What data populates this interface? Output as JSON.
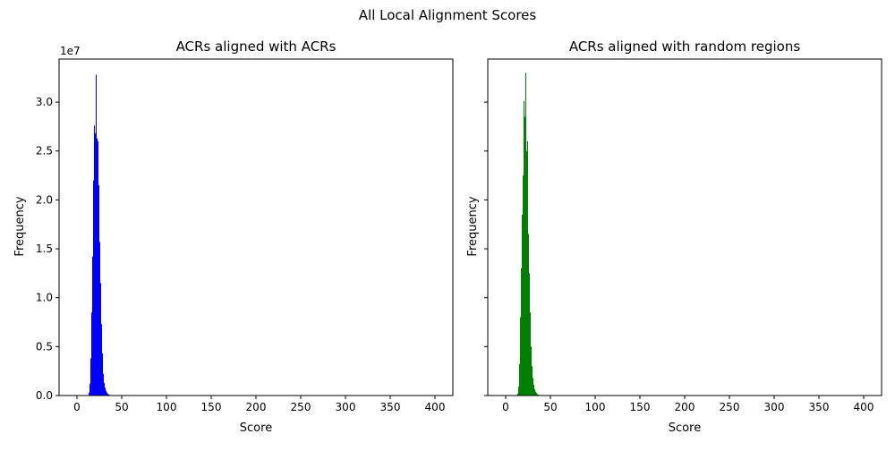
{
  "figure": {
    "suptitle": "All Local Alignment Scores"
  },
  "chart_data": [
    {
      "type": "bar",
      "title": "ACRs aligned with ACRs",
      "xlabel": "Score",
      "ylabel": "Frequency",
      "y_offset_label": "1e7",
      "y_multiplier": 10000000,
      "color": "#0000ff",
      "xlim": [
        -20,
        420
      ],
      "ylim": [
        0,
        34400000
      ],
      "xticks": [
        0,
        50,
        100,
        150,
        200,
        250,
        300,
        350,
        400
      ],
      "xtick_labels": [
        "0",
        "50",
        "100",
        "150",
        "200",
        "250",
        "300",
        "350",
        "400"
      ],
      "yticks": [
        0,
        5000000,
        10000000,
        15000000,
        20000000,
        25000000,
        30000000
      ],
      "ytick_labels": [
        "0.0",
        "0.5",
        "1.0",
        "1.5",
        "2.0",
        "2.5",
        "3.0"
      ],
      "show_ytick_labels": true,
      "bin_width": 1,
      "bins": [
        {
          "x": 13,
          "y": 300000
        },
        {
          "x": 14,
          "y": 1200000
        },
        {
          "x": 15,
          "y": 3800000
        },
        {
          "x": 16,
          "y": 8500000
        },
        {
          "x": 17,
          "y": 14200000
        },
        {
          "x": 18,
          "y": 22000000
        },
        {
          "x": 19,
          "y": 27600000
        },
        {
          "x": 20,
          "y": 26800000
        },
        {
          "x": 21,
          "y": 32800000
        },
        {
          "x": 22,
          "y": 26300000
        },
        {
          "x": 23,
          "y": 26000000
        },
        {
          "x": 24,
          "y": 21500000
        },
        {
          "x": 25,
          "y": 15700000
        },
        {
          "x": 26,
          "y": 11500000
        },
        {
          "x": 27,
          "y": 7300000
        },
        {
          "x": 28,
          "y": 4300000
        },
        {
          "x": 29,
          "y": 2200000
        },
        {
          "x": 30,
          "y": 1300000
        },
        {
          "x": 31,
          "y": 800000
        },
        {
          "x": 32,
          "y": 500000
        },
        {
          "x": 33,
          "y": 300000
        },
        {
          "x": 34,
          "y": 180000
        },
        {
          "x": 35,
          "y": 110000
        },
        {
          "x": 36,
          "y": 70000
        },
        {
          "x": 37,
          "y": 45000
        },
        {
          "x": 38,
          "y": 30000
        },
        {
          "x": 40,
          "y": 20000
        },
        {
          "x": 42,
          "y": 12000
        },
        {
          "x": 45,
          "y": 8000
        },
        {
          "x": 48,
          "y": 5000
        }
      ]
    },
    {
      "type": "bar",
      "title": "ACRs aligned with random regions",
      "xlabel": "Score",
      "ylabel": "Frequency",
      "color": "#008000",
      "xlim": [
        -20,
        420
      ],
      "ylim": [
        0,
        34400000
      ],
      "xticks": [
        0,
        50,
        100,
        150,
        200,
        250,
        300,
        350,
        400
      ],
      "xtick_labels": [
        "0",
        "50",
        "100",
        "150",
        "200",
        "250",
        "300",
        "350",
        "400"
      ],
      "yticks": [
        0,
        5000000,
        10000000,
        15000000,
        20000000,
        25000000,
        30000000
      ],
      "show_ytick_labels": false,
      "bin_width": 1,
      "bins": [
        {
          "x": 13,
          "y": 200000
        },
        {
          "x": 14,
          "y": 900000
        },
        {
          "x": 15,
          "y": 3200000
        },
        {
          "x": 16,
          "y": 8000000
        },
        {
          "x": 17,
          "y": 13000000
        },
        {
          "x": 18,
          "y": 18500000
        },
        {
          "x": 19,
          "y": 22500000
        },
        {
          "x": 20,
          "y": 30100000
        },
        {
          "x": 21,
          "y": 28500000
        },
        {
          "x": 22,
          "y": 33000000
        },
        {
          "x": 23,
          "y": 25000000
        },
        {
          "x": 24,
          "y": 26000000
        },
        {
          "x": 25,
          "y": 16500000
        },
        {
          "x": 26,
          "y": 12500000
        },
        {
          "x": 27,
          "y": 8500000
        },
        {
          "x": 28,
          "y": 5000000
        },
        {
          "x": 29,
          "y": 3000000
        },
        {
          "x": 30,
          "y": 1800000
        },
        {
          "x": 31,
          "y": 1100000
        },
        {
          "x": 32,
          "y": 650000
        },
        {
          "x": 33,
          "y": 400000
        },
        {
          "x": 34,
          "y": 250000
        },
        {
          "x": 35,
          "y": 150000
        },
        {
          "x": 36,
          "y": 90000
        },
        {
          "x": 37,
          "y": 55000
        },
        {
          "x": 38,
          "y": 35000
        },
        {
          "x": 40,
          "y": 22000
        },
        {
          "x": 42,
          "y": 14000
        },
        {
          "x": 45,
          "y": 9000
        },
        {
          "x": 48,
          "y": 6000
        }
      ]
    }
  ]
}
